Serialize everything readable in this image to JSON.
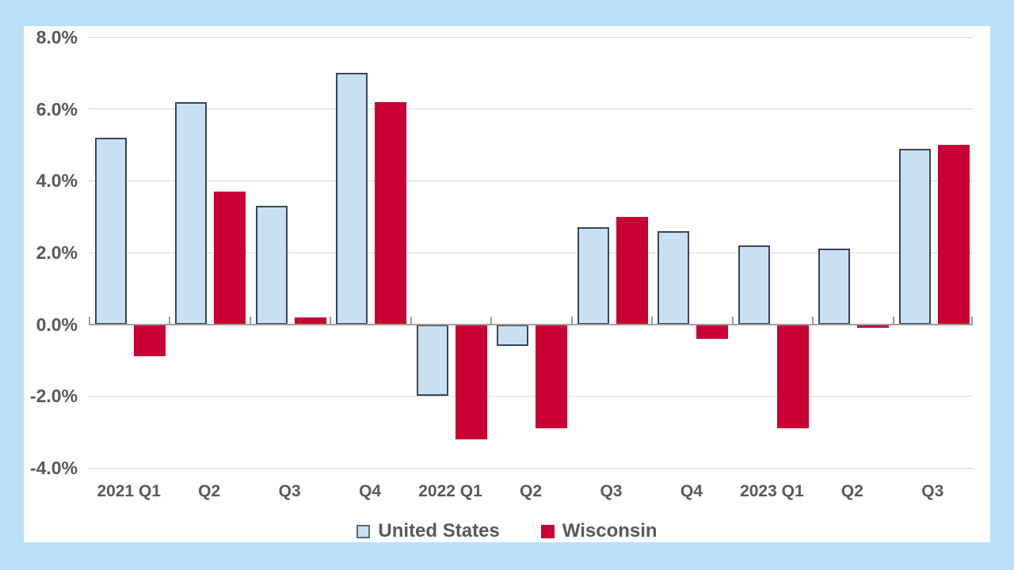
{
  "chart_data": {
    "type": "bar",
    "title": "",
    "xlabel": "",
    "ylabel": "",
    "categories": [
      "2021 Q1",
      "Q2",
      "Q3",
      "Q4",
      "2022 Q1",
      "Q2",
      "Q3",
      "Q4",
      "2023 Q1",
      "Q2",
      "Q3"
    ],
    "series": [
      {
        "name": "United States",
        "values": [
          5.2,
          6.2,
          3.3,
          7.0,
          -2.0,
          -0.6,
          2.7,
          2.6,
          2.2,
          2.1,
          4.9
        ]
      },
      {
        "name": "Wisconsin",
        "values": [
          -0.9,
          3.7,
          0.2,
          6.2,
          -3.2,
          -2.9,
          3.0,
          -0.4,
          -2.9,
          -0.1,
          5.0
        ]
      }
    ],
    "ylim": [
      -4,
      8
    ],
    "ytick_step": 2,
    "yticks": [
      {
        "value": 8,
        "label": "8.0%"
      },
      {
        "value": 6,
        "label": "6.0%"
      },
      {
        "value": 4,
        "label": "4.0%"
      },
      {
        "value": 2,
        "label": "2.0%"
      },
      {
        "value": 0,
        "label": "0.0%"
      },
      {
        "value": -2,
        "label": "-2.0%"
      },
      {
        "value": -4,
        "label": "-4.0%"
      }
    ],
    "grid": true,
    "legend_position": "bottom-center"
  },
  "colors": {
    "page_background": "#b9e1f8",
    "panel_background": "#ffffff",
    "united_states_fill": "#c8e0f2",
    "united_states_border": "#3a4557",
    "wisconsin_fill": "#c90034",
    "gridline": "#d9d9d9",
    "axis_line": "#9f9f9f",
    "text": "#595959"
  }
}
